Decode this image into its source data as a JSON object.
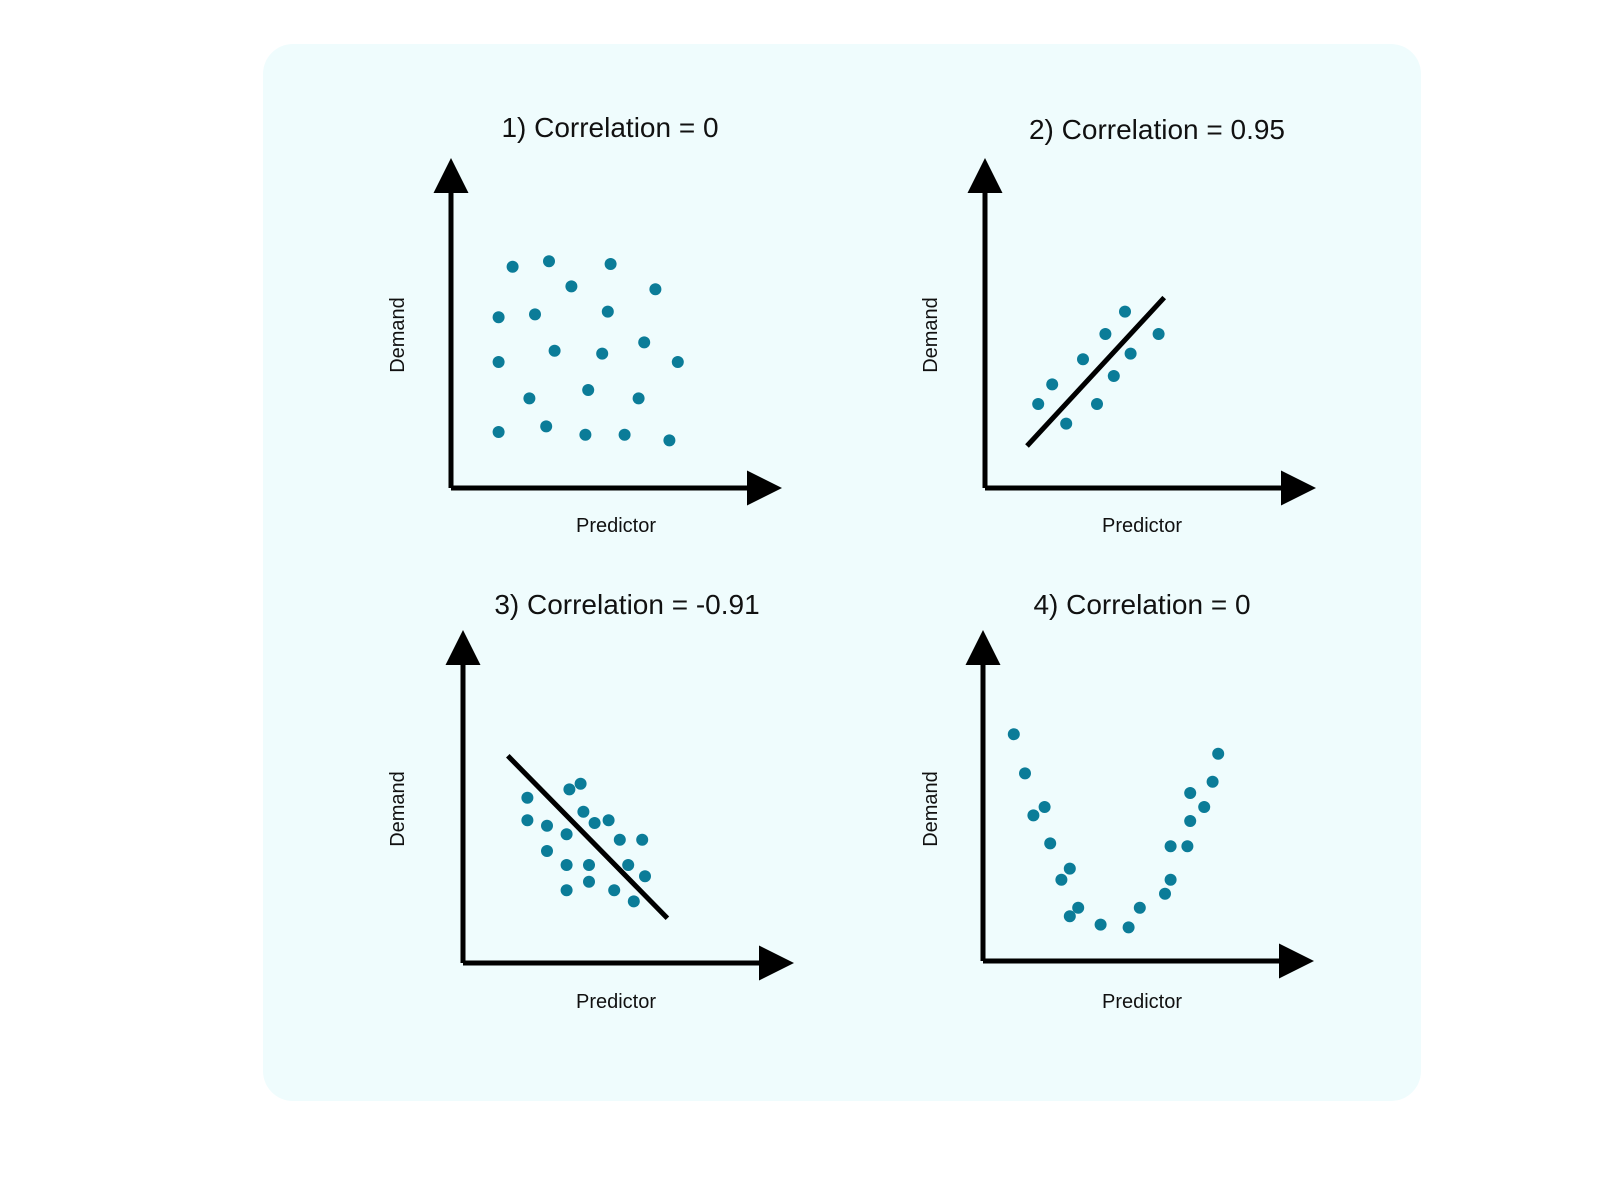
{
  "figure": {
    "background": "#effcfd",
    "point_color": "#0b7c98",
    "line_color": "#000000"
  },
  "chart_data": [
    {
      "type": "scatter",
      "title": "1) Correlation = 0",
      "xlabel": "Predictor",
      "ylabel": "Demand",
      "xlim": [
        0,
        10
      ],
      "ylim": [
        0,
        10
      ],
      "fit_line": null,
      "points": [
        [
          2.2,
          7.9
        ],
        [
          3.5,
          8.1
        ],
        [
          5.7,
          8.0
        ],
        [
          4.3,
          7.2
        ],
        [
          7.3,
          7.1
        ],
        [
          1.7,
          6.1
        ],
        [
          3.0,
          6.2
        ],
        [
          5.6,
          6.3
        ],
        [
          6.9,
          5.2
        ],
        [
          1.7,
          4.5
        ],
        [
          3.7,
          4.9
        ],
        [
          5.4,
          4.8
        ],
        [
          8.1,
          4.5
        ],
        [
          2.8,
          3.2
        ],
        [
          4.9,
          3.5
        ],
        [
          6.7,
          3.2
        ],
        [
          1.7,
          2.0
        ],
        [
          3.4,
          2.2
        ],
        [
          4.8,
          1.9
        ],
        [
          6.2,
          1.9
        ],
        [
          7.8,
          1.7
        ]
      ]
    },
    {
      "type": "scatter",
      "title": "2) Correlation = 0.95",
      "xlabel": "Predictor",
      "ylabel": "Demand",
      "xlim": [
        0,
        10
      ],
      "ylim": [
        0,
        10
      ],
      "fit_line": [
        [
          1.5,
          1.5
        ],
        [
          6.4,
          6.8
        ]
      ],
      "points": [
        [
          1.9,
          3.0
        ],
        [
          2.4,
          3.7
        ],
        [
          2.9,
          2.3
        ],
        [
          3.5,
          4.6
        ],
        [
          4.0,
          3.0
        ],
        [
          4.3,
          5.5
        ],
        [
          4.6,
          4.0
        ],
        [
          5.0,
          6.3
        ],
        [
          5.2,
          4.8
        ],
        [
          6.2,
          5.5
        ]
      ]
    },
    {
      "type": "scatter",
      "title": "3) Correlation = -0.91",
      "xlabel": "Predictor",
      "ylabel": "Demand",
      "xlim": [
        0,
        10
      ],
      "ylim": [
        0,
        10
      ],
      "fit_line": [
        [
          1.6,
          7.4
        ],
        [
          7.3,
          1.6
        ]
      ],
      "points": [
        [
          2.3,
          5.9
        ],
        [
          3.8,
          6.2
        ],
        [
          4.2,
          6.4
        ],
        [
          2.3,
          5.1
        ],
        [
          4.3,
          5.4
        ],
        [
          3.0,
          4.9
        ],
        [
          3.7,
          4.6
        ],
        [
          4.7,
          5.0
        ],
        [
          5.2,
          5.1
        ],
        [
          5.6,
          4.4
        ],
        [
          6.4,
          4.4
        ],
        [
          3.0,
          4.0
        ],
        [
          3.7,
          3.5
        ],
        [
          4.5,
          3.5
        ],
        [
          5.9,
          3.5
        ],
        [
          6.5,
          3.1
        ],
        [
          4.5,
          2.9
        ],
        [
          3.7,
          2.6
        ],
        [
          5.4,
          2.6
        ],
        [
          6.1,
          2.2
        ]
      ]
    },
    {
      "type": "scatter",
      "title": "4) Correlation = 0",
      "xlabel": "Predictor",
      "ylabel": "Demand",
      "xlim": [
        0,
        10
      ],
      "ylim": [
        0,
        10
      ],
      "fit_line": null,
      "points": [
        [
          1.1,
          8.1
        ],
        [
          1.5,
          6.7
        ],
        [
          1.8,
          5.2
        ],
        [
          2.2,
          5.5
        ],
        [
          2.4,
          4.2
        ],
        [
          2.8,
          2.9
        ],
        [
          3.1,
          3.3
        ],
        [
          3.1,
          1.6
        ],
        [
          3.4,
          1.9
        ],
        [
          4.2,
          1.3
        ],
        [
          5.2,
          1.2
        ],
        [
          5.6,
          1.9
        ],
        [
          6.5,
          2.4
        ],
        [
          6.7,
          2.9
        ],
        [
          6.7,
          4.1
        ],
        [
          7.3,
          4.1
        ],
        [
          7.4,
          5.0
        ],
        [
          7.4,
          6.0
        ],
        [
          7.9,
          5.5
        ],
        [
          8.2,
          6.4
        ],
        [
          8.4,
          7.4
        ]
      ]
    }
  ]
}
